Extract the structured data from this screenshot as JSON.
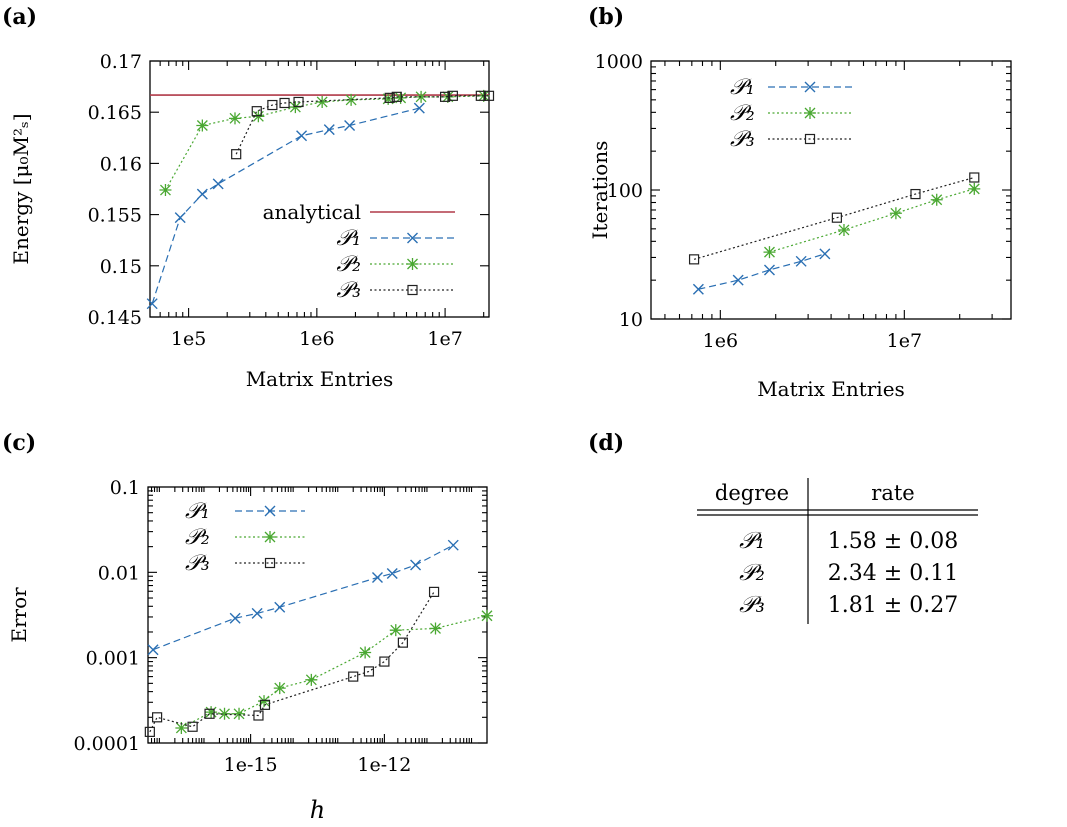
{
  "colors": {
    "analytical": "#b03a48",
    "p1": "#2a6fb3",
    "p2": "#4aa832",
    "p3": "#222222"
  },
  "chart_data": [
    {
      "panel": "(a)",
      "type": "line",
      "xscale": "log",
      "xlim": [
        50000,
        22000000
      ],
      "ylim": [
        0.145,
        0.17
      ],
      "xlabel": "Matrix Entries",
      "ylabel": "Energy [μ₀M²ₛ]",
      "xticks": [
        {
          "v": 100000,
          "label": "1e5"
        },
        {
          "v": 1000000,
          "label": "1e6"
        },
        {
          "v": 10000000,
          "label": "1e7"
        }
      ],
      "yticks": [
        {
          "v": 0.145,
          "label": "0.145"
        },
        {
          "v": 0.15,
          "label": "0.15"
        },
        {
          "v": 0.155,
          "label": "0.155"
        },
        {
          "v": 0.16,
          "label": "0.16"
        },
        {
          "v": 0.165,
          "label": "0.165"
        },
        {
          "v": 0.17,
          "label": "0.17"
        }
      ],
      "legend": "bottom-right",
      "series": [
        {
          "name": "analytical",
          "key": "analytical",
          "marker": "none",
          "line": "solid",
          "x": [
            50000,
            22000000
          ],
          "y": [
            0.16667,
            0.16667
          ]
        },
        {
          "name": "𝒫₁",
          "key": "p1",
          "marker": "x",
          "line": "dashed",
          "x": [
            52000,
            86000,
            128000,
            170000,
            760000,
            1250000,
            1800000,
            6300000
          ],
          "y": [
            0.1463,
            0.1547,
            0.157,
            0.158,
            0.1627,
            0.1633,
            0.1637,
            0.1654
          ]
        },
        {
          "name": "𝒫₂",
          "key": "p2",
          "marker": "star",
          "line": "dotted",
          "x": [
            66000,
            128000,
            230000,
            350000,
            680000,
            1100000,
            1850000,
            3600000,
            4500000,
            6500000,
            10500000,
            20000000
          ],
          "y": [
            0.1574,
            0.1637,
            0.1644,
            0.1646,
            0.1655,
            0.166,
            0.1662,
            0.1663,
            0.1664,
            0.1665,
            0.1665,
            0.1666
          ]
        },
        {
          "name": "𝒫₃",
          "key": "p3",
          "marker": "square",
          "line": "dotted",
          "x": [
            235000,
            340000,
            450000,
            560000,
            720000,
            3700000,
            4200000,
            10000000,
            11500000,
            19000000,
            22000000
          ],
          "y": [
            0.1609,
            0.1651,
            0.1657,
            0.1659,
            0.166,
            0.1664,
            0.1665,
            0.1665,
            0.1666,
            0.1666,
            0.1666
          ]
        }
      ]
    },
    {
      "panel": "(b)",
      "type": "line",
      "xscale": "log",
      "yscale": "log",
      "xlim": [
        420000,
        38000000
      ],
      "ylim": [
        10,
        1000
      ],
      "xlabel": "Matrix Entries",
      "ylabel": "Iterations",
      "xticks": [
        {
          "v": 1000000,
          "label": "1e6"
        },
        {
          "v": 10000000,
          "label": "1e7"
        }
      ],
      "yticks": [
        {
          "v": 10,
          "label": "10"
        },
        {
          "v": 100,
          "label": "100"
        },
        {
          "v": 1000,
          "label": "1000"
        }
      ],
      "legend": "top-left",
      "series": [
        {
          "name": "𝒫₁",
          "key": "p1",
          "marker": "x",
          "line": "dashed",
          "x": [
            760000,
            1250000,
            1850000,
            2750000,
            3700000
          ],
          "y": [
            17,
            20,
            24,
            28,
            32
          ]
        },
        {
          "name": "𝒫₂",
          "key": "p2",
          "marker": "star",
          "line": "dotted",
          "x": [
            1850000,
            4700000,
            9000000,
            15000000,
            24000000
          ],
          "y": [
            33,
            49,
            66,
            84,
            102
          ]
        },
        {
          "name": "𝒫₃",
          "key": "p3",
          "marker": "square",
          "line": "dotted",
          "x": [
            720000,
            4300000,
            11500000,
            24000000
          ],
          "y": [
            29,
            61,
            93,
            125
          ]
        }
      ]
    },
    {
      "panel": "(c)",
      "type": "line",
      "xscale": "log",
      "yscale": "log",
      "xlim": [
        5e-18,
        2e-10
      ],
      "ylim": [
        0.0001,
        0.1
      ],
      "xlabel": "h",
      "ylabel": "Error",
      "xticks": [
        {
          "v": 1e-15,
          "label": "1e-15"
        },
        {
          "v": 1e-12,
          "label": "1e-12"
        }
      ],
      "yticks": [
        {
          "v": 0.0001,
          "label": "0.0001"
        },
        {
          "v": 0.001,
          "label": "0.001"
        },
        {
          "v": 0.01,
          "label": "0.01"
        },
        {
          "v": 0.1,
          "label": "0.1"
        }
      ],
      "legend": "top-left",
      "series": [
        {
          "name": "𝒫₁",
          "key": "p1",
          "marker": "x",
          "line": "dashed",
          "x": [
            6.5e-18,
            4.5e-16,
            1.4e-15,
            4.5e-15,
            7e-13,
            1.5e-12,
            5e-12,
            3.5e-11
          ],
          "y": [
            0.00124,
            0.0029,
            0.0033,
            0.0039,
            0.0087,
            0.0097,
            0.0122,
            0.0208
          ]
        },
        {
          "name": "𝒫₂",
          "key": "p2",
          "marker": "star",
          "line": "dotted",
          "x": [
            2.8e-17,
            1.3e-16,
            2.6e-16,
            5.5e-16,
            2e-15,
            4.5e-15,
            2.3e-14,
            3.7e-13,
            1.8e-12,
            1.4e-11,
            2e-10
          ],
          "y": [
            0.00015,
            0.00023,
            0.00022,
            0.00022,
            0.00031,
            0.00044,
            0.00055,
            0.00115,
            0.0021,
            0.0022,
            0.0031
          ]
        },
        {
          "name": "𝒫₃",
          "key": "p3",
          "marker": "square",
          "line": "dotted",
          "x": [
            5.5e-18,
            8e-18,
            5e-17,
            1.2e-16,
            1.5e-15,
            2.1e-15,
            2e-13,
            4.5e-13,
            1e-12,
            2.6e-12,
            1.3e-11
          ],
          "y": [
            0.000135,
            0.0002,
            0.000155,
            0.00022,
            0.00021,
            0.00028,
            0.0006,
            0.00069,
            0.0009,
            0.0015,
            0.0059
          ]
        }
      ]
    },
    {
      "panel": "(d)",
      "type": "table",
      "columns": [
        "degree",
        "rate"
      ],
      "rows": [
        {
          "degree": "𝒫₁",
          "rate": "1.58 ± 0.08"
        },
        {
          "degree": "𝒫₂",
          "rate": "2.34 ± 0.11"
        },
        {
          "degree": "𝒫₃",
          "rate": "1.81 ± 0.27"
        }
      ]
    }
  ]
}
